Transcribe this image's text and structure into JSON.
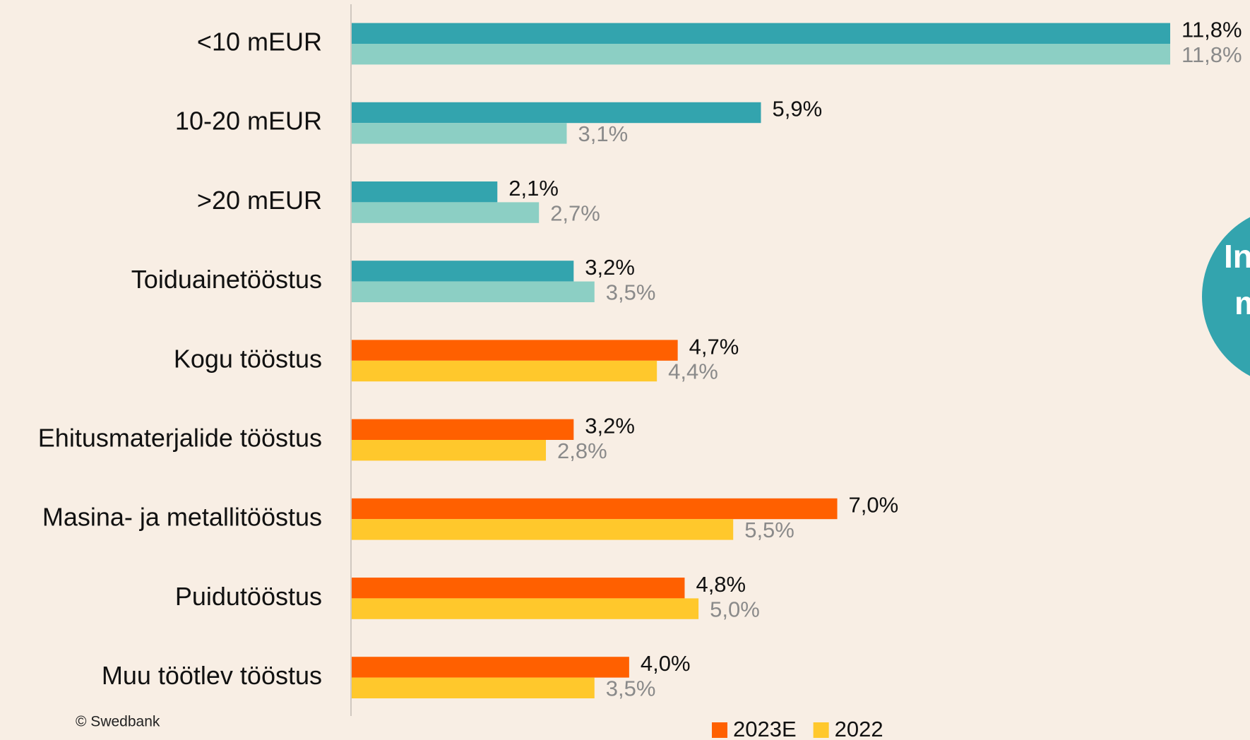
{
  "chart_data": {
    "type": "hbar",
    "categories": [
      "<10 mEUR",
      "10-20 mEUR",
      ">20 mEUR",
      "Toiduainetööstus",
      "Kogu tööstus",
      "Ehitusmaterjalide tööstus",
      "Masina- ja metallitööstus",
      "Puidutööstus",
      "Muu töötlev tööstus"
    ],
    "series": [
      {
        "name": "2023E",
        "color": "#ff6000",
        "colors": [
          "#33a4ae",
          "#33a4ae",
          "#33a4ae",
          "#33a4ae",
          "#ff6000",
          "#ff6000",
          "#ff6000",
          "#ff6000",
          "#ff6000"
        ],
        "values": [
          11.8,
          5.9,
          2.1,
          3.2,
          4.7,
          3.2,
          7.0,
          4.8,
          4.0
        ],
        "value_labels": [
          "11,8%",
          "5,9%",
          "2,1%",
          "3,2%",
          "4,7%",
          "3,2%",
          "7,0%",
          "4,8%",
          "4,0%"
        ]
      },
      {
        "name": "2022",
        "color": "#ffc82c",
        "colors": [
          "#8ccfc4",
          "#8ccfc4",
          "#8ccfc4",
          "#8ccfc4",
          "#ffc82c",
          "#ffc82c",
          "#ffc82c",
          "#ffc82c",
          "#ffc82c"
        ],
        "values": [
          11.8,
          3.1,
          2.7,
          3.5,
          4.4,
          2.8,
          5.5,
          5.0,
          3.5
        ],
        "value_labels": [
          "11,8%",
          "3,1%",
          "2,7%",
          "3,5%",
          "4,4%",
          "2,8%",
          "5,5%",
          "5,0%",
          "3,5%"
        ]
      }
    ],
    "legend": "bottom",
    "annotations": [
      "In",
      "m"
    ],
    "source": "© Swedbank"
  }
}
